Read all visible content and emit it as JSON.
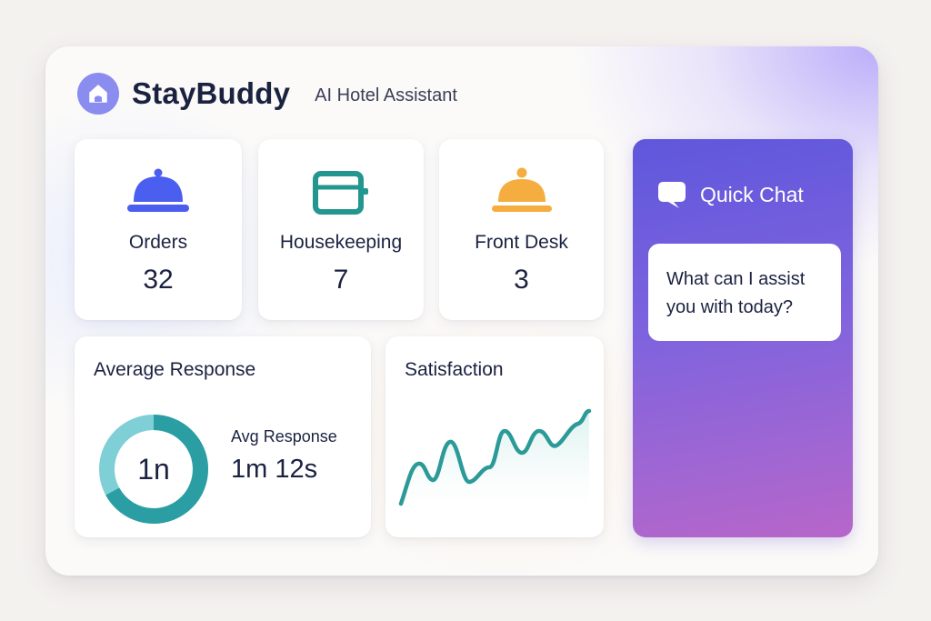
{
  "brand": {
    "name": "StayBuddy",
    "tagline": "AI Hotel Assistant",
    "logo_icon": "house-icon",
    "accent": "#8a8cf0"
  },
  "stats": [
    {
      "label": "Orders",
      "value": "32",
      "icon": "cloche-icon",
      "color": "#4a5ef0"
    },
    {
      "label": "Housekeeping",
      "value": "7",
      "icon": "storage-box-icon",
      "color": "#23968f"
    },
    {
      "label": "Front Desk",
      "value": "3",
      "icon": "service-bell-icon",
      "color": "#f5ad3f"
    }
  ],
  "response": {
    "title": "Average Response",
    "center_text": "1n",
    "label": "Avg Response",
    "value": "1m 12s",
    "ring_fraction": 0.67,
    "ring_color": "#2b9ea4",
    "ring_light_color": "#7fcfd6"
  },
  "satisfaction": {
    "title": "Satisfaction",
    "line_color": "#2b9a98"
  },
  "chat": {
    "title": "Quick Chat",
    "icon": "chat-bubble-icon",
    "message": "What can I assist you with today?"
  }
}
